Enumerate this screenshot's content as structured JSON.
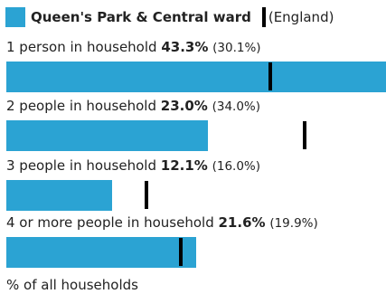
{
  "legend": {
    "area_name": "Queen's Park & Central ward",
    "comparison_name": "(England)"
  },
  "colors": {
    "area_bar": "#2ba3d3",
    "comparison_marker": "#000000"
  },
  "chart_data": {
    "type": "bar",
    "orientation": "horizontal",
    "value_unit": "%",
    "xlim": [
      0,
      43.3
    ],
    "categories": [
      "1 person in household",
      "2 people in household",
      "3 people in household",
      "4 or more people in household"
    ],
    "series": [
      {
        "name": "Queen's Park & Central ward",
        "values": [
          43.3,
          23.0,
          12.1,
          21.6
        ]
      },
      {
        "name": "England",
        "values": [
          30.1,
          34.0,
          16.0,
          19.9
        ]
      }
    ],
    "value_labels": [
      "43.3%",
      "23.0%",
      "12.1%",
      "21.6%"
    ],
    "comparison_labels": [
      "(30.1%)",
      "(34.0%)",
      "(16.0%)",
      "(19.9%)"
    ],
    "xlabel": "% of all households"
  }
}
